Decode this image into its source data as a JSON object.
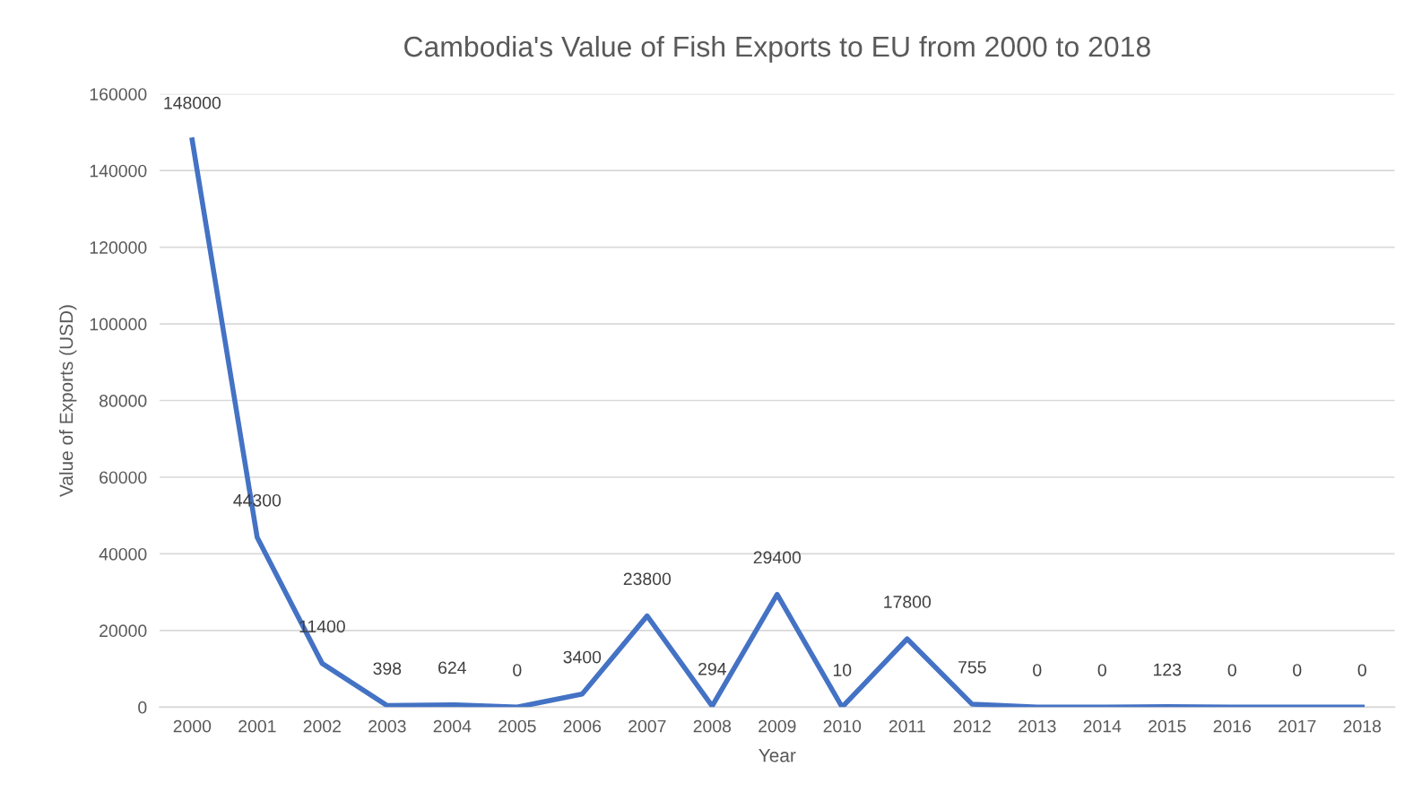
{
  "chart_data": {
    "type": "line",
    "title": "Cambodia's Value of Fish Exports to EU from 2000 to 2018",
    "xlabel": "Year",
    "ylabel": "Value of Exports (USD)",
    "categories": [
      "2000",
      "2001",
      "2002",
      "2003",
      "2004",
      "2005",
      "2006",
      "2007",
      "2008",
      "2009",
      "2010",
      "2011",
      "2012",
      "2013",
      "2014",
      "2015",
      "2016",
      "2017",
      "2018"
    ],
    "series": [
      {
        "color": "#4472c4",
        "values": [
          148000,
          44300,
          11400,
          398,
          624,
          0,
          3400,
          23800,
          294,
          29400,
          10,
          17800,
          755,
          0,
          0,
          123,
          0,
          0,
          0
        ]
      }
    ],
    "ylim": [
      0,
      160000
    ],
    "yticks": [
      0,
      20000,
      40000,
      60000,
      80000,
      100000,
      120000,
      140000,
      160000
    ],
    "grid": "y",
    "data_labels": true,
    "marker": "none",
    "line_style": "solid"
  }
}
